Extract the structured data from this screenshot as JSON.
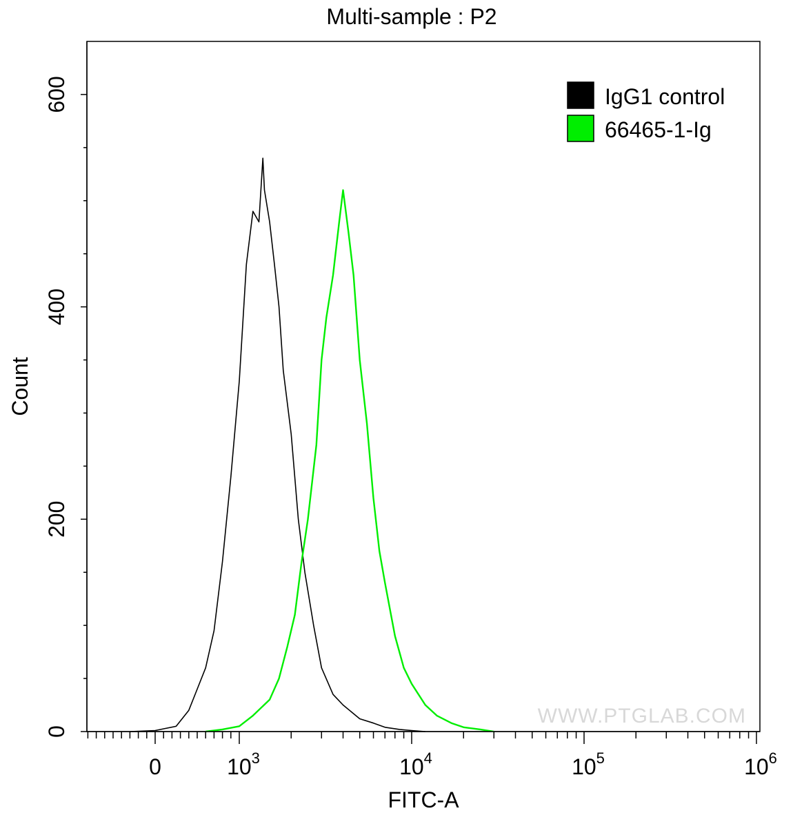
{
  "chart_data": {
    "type": "line",
    "title": "Multi-sample : P2",
    "xlabel": "FITC-A",
    "ylabel": "Count",
    "x_scale": "biexponential",
    "ylim": [
      0,
      650
    ],
    "y_ticks": [
      0,
      200,
      400,
      600
    ],
    "y_tick_labels": [
      "0",
      "200",
      "400",
      "600"
    ],
    "x_ticks": [
      {
        "value": 0,
        "base": "0",
        "exp": ""
      },
      {
        "value": 1000,
        "base": "10",
        "exp": "3"
      },
      {
        "value": 10000,
        "base": "10",
        "exp": "4"
      },
      {
        "value": 100000,
        "base": "10",
        "exp": "5"
      },
      {
        "value": 1000000,
        "base": "10",
        "exp": "6"
      }
    ],
    "legend": {
      "position": "top-right",
      "entries": [
        {
          "label": "IgG1 control",
          "color": "#000000"
        },
        {
          "label": "66465-1-Ig",
          "color": "#00ee00"
        }
      ]
    },
    "series": [
      {
        "name": "IgG1 control",
        "color": "#000000",
        "points": [
          [
            -300,
            0
          ],
          [
            0,
            1
          ],
          [
            250,
            5
          ],
          [
            400,
            20
          ],
          [
            500,
            40
          ],
          [
            600,
            60
          ],
          [
            700,
            95
          ],
          [
            800,
            160
          ],
          [
            900,
            240
          ],
          [
            1000,
            330
          ],
          [
            1100,
            440
          ],
          [
            1200,
            490
          ],
          [
            1300,
            480
          ],
          [
            1370,
            540
          ],
          [
            1400,
            510
          ],
          [
            1500,
            480
          ],
          [
            1600,
            440
          ],
          [
            1700,
            400
          ],
          [
            1800,
            340
          ],
          [
            2000,
            280
          ],
          [
            2200,
            200
          ],
          [
            2400,
            150
          ],
          [
            2700,
            100
          ],
          [
            3000,
            60
          ],
          [
            3500,
            35
          ],
          [
            4000,
            25
          ],
          [
            5000,
            12
          ],
          [
            6000,
            8
          ],
          [
            7000,
            4
          ],
          [
            8500,
            2
          ],
          [
            10000,
            1
          ],
          [
            12000,
            0
          ]
        ]
      },
      {
        "name": "66465-1-Ig",
        "color": "#00ee00",
        "points": [
          [
            600,
            0
          ],
          [
            800,
            2
          ],
          [
            1000,
            5
          ],
          [
            1200,
            15
          ],
          [
            1500,
            30
          ],
          [
            1700,
            50
          ],
          [
            1900,
            80
          ],
          [
            2100,
            110
          ],
          [
            2300,
            160
          ],
          [
            2500,
            200
          ],
          [
            2800,
            270
          ],
          [
            3000,
            350
          ],
          [
            3200,
            390
          ],
          [
            3500,
            430
          ],
          [
            3800,
            480
          ],
          [
            4000,
            510
          ],
          [
            4300,
            470
          ],
          [
            4600,
            430
          ],
          [
            5000,
            350
          ],
          [
            5500,
            290
          ],
          [
            6000,
            220
          ],
          [
            6500,
            170
          ],
          [
            7000,
            140
          ],
          [
            8000,
            90
          ],
          [
            9000,
            60
          ],
          [
            10000,
            45
          ],
          [
            12000,
            25
          ],
          [
            14000,
            15
          ],
          [
            17000,
            8
          ],
          [
            20000,
            4
          ],
          [
            25000,
            2
          ],
          [
            30000,
            0
          ]
        ]
      }
    ],
    "annotation": "WWW.PTGLAB.COM"
  }
}
